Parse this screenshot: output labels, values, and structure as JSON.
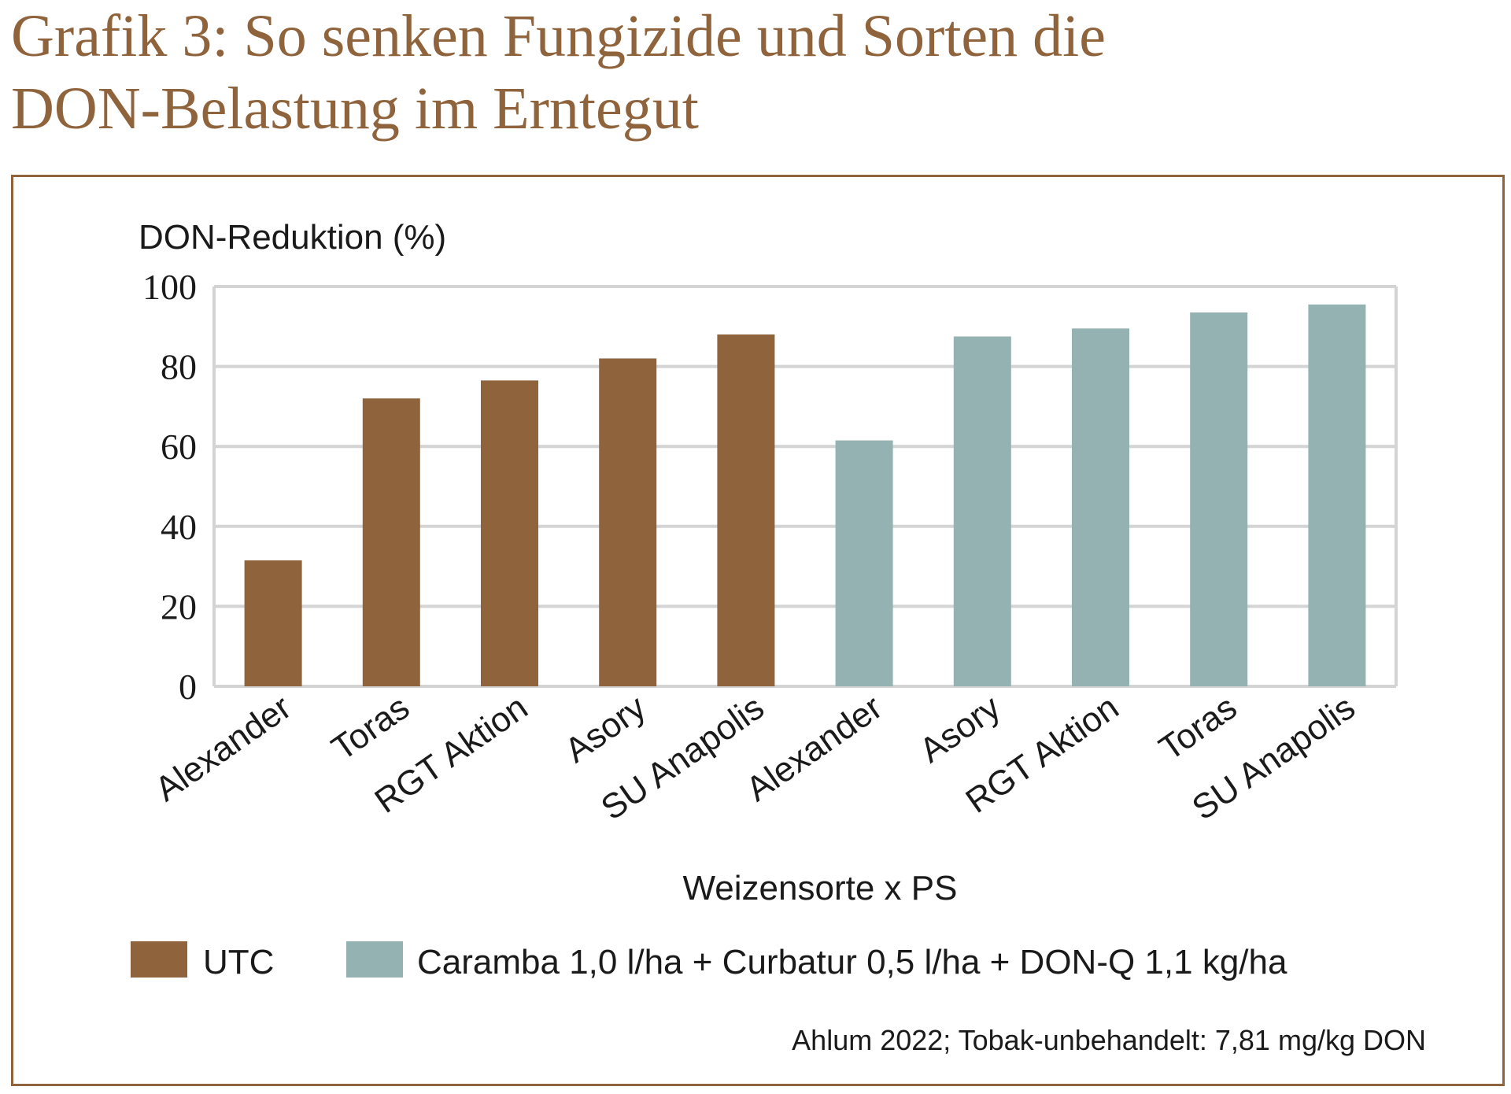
{
  "title": {
    "line1": "Grafik 3: So senken Fungizide und Sorten die",
    "line2": "DON-Belastung im Erntegut"
  },
  "colors": {
    "accent": "#8f633c",
    "utc": "#8f633c",
    "treated": "#94b2b1",
    "grid": "#d4d4d4"
  },
  "chart_data": {
    "type": "bar",
    "ylabel": "DON-Reduktion (%)",
    "xlabel": "Weizensorte x PS",
    "ylim": [
      0,
      100
    ],
    "yticks": [
      0,
      20,
      40,
      60,
      80,
      100
    ],
    "grid": true,
    "legend_position": "bottom",
    "categories": [
      "Alexander",
      "Toras",
      "RGT Aktion",
      "Asory",
      "SU Anapolis",
      "Alexander",
      "Asory",
      "RGT Aktion",
      "Toras",
      "SU Anapolis"
    ],
    "values": [
      31.5,
      72,
      76.5,
      82,
      88,
      61.5,
      87.5,
      89.5,
      93.5,
      95.5
    ],
    "series": [
      {
        "name": "UTC",
        "color": "#8f633c",
        "indices": [
          0,
          1,
          2,
          3,
          4
        ]
      },
      {
        "name": "Caramba 1,0 l/ha + Curbatur 0,5 l/ha + DON-Q 1,1 kg/ha",
        "color": "#94b2b1",
        "indices": [
          5,
          6,
          7,
          8,
          9
        ]
      }
    ],
    "note": "Ahlum 2022; Tobak-unbehandelt: 7,81 mg/kg DON"
  }
}
